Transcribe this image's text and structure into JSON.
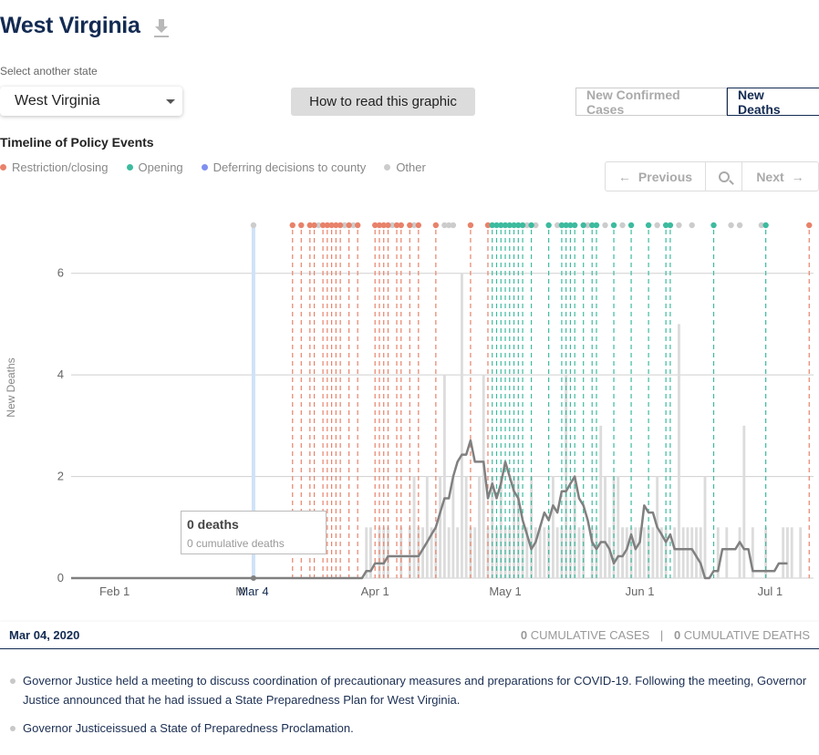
{
  "header": {
    "title": "West Virginia"
  },
  "state_select": {
    "label": "Select another state",
    "value": "West Virginia"
  },
  "how_button": {
    "label": "How to read this graphic"
  },
  "toggle": {
    "confirmed_label": "New Confirmed Cases",
    "deaths_label": "New Deaths",
    "active": "New Deaths"
  },
  "timeline": {
    "title": "Timeline of Policy Events",
    "legend": [
      {
        "label": "Restriction/closing",
        "color": "#e8826a"
      },
      {
        "label": "Opening",
        "color": "#3dbb9f"
      },
      {
        "label": "Deferring decisions to county",
        "color": "#7f8ff0"
      },
      {
        "label": "Other",
        "color": "#cccccc"
      }
    ]
  },
  "nav": {
    "previous_label": "Previous",
    "next_label": "Next"
  },
  "tooltip": {
    "deaths": "0 deaths",
    "cumulative": "0 cumulative deaths"
  },
  "info_bar": {
    "date": "Mar 04, 2020",
    "cum_cases_value": "0",
    "cum_cases_label": "CUMULATIVE CASES",
    "separator": "|",
    "cum_deaths_value": "0",
    "cum_deaths_label": "CUMULATIVE DEATHS"
  },
  "events": [
    "Governor Justice held a meeting to discuss coordination of precautionary measures and preparations for COVID-19. Following the meeting, Governor Justice announced that he had issued a State Preparedness Plan for West Virginia.",
    "Governor Justiceissued a State of Preparedness Proclamation."
  ],
  "chart_data": {
    "type": "bar",
    "ylabel": "New Deaths",
    "ylim": [
      0,
      7
    ],
    "yticks": [
      0,
      2,
      4,
      6
    ],
    "grid": true,
    "x_start": "2020-01-22",
    "x_end": "2020-07-11",
    "x_ticks": [
      {
        "label": "Feb 1",
        "date": "2020-02-01"
      },
      {
        "label": "M",
        "date": "2020-03-01"
      },
      {
        "label": "Apr 1",
        "date": "2020-04-01"
      },
      {
        "label": "May 1",
        "date": "2020-05-01"
      },
      {
        "label": "Jun 1",
        "date": "2020-06-01"
      },
      {
        "label": "Jul 1",
        "date": "2020-07-01"
      }
    ],
    "selected": {
      "label": "Mar 4",
      "date": "2020-03-04"
    },
    "bars_start": "2020-03-29",
    "bars": [
      0,
      1,
      1,
      0,
      1,
      1,
      1,
      0,
      0,
      1,
      0,
      1,
      2,
      1,
      1,
      2,
      1,
      1,
      2,
      4,
      1,
      2,
      1,
      6,
      2,
      1,
      1,
      2,
      4,
      1,
      2,
      1,
      2,
      1,
      1,
      2,
      2,
      1,
      1,
      2,
      1,
      1,
      1,
      1,
      2,
      1,
      1,
      4,
      1,
      2,
      1,
      1,
      0,
      1,
      1,
      3,
      2,
      1,
      2,
      2,
      1,
      1,
      1,
      1,
      1,
      1,
      1,
      1,
      2,
      1,
      1,
      0,
      1,
      5,
      1,
      1,
      1,
      1,
      1,
      2,
      0,
      0,
      1,
      0,
      1,
      0,
      0,
      1,
      3,
      0,
      1,
      0,
      0,
      1,
      0,
      0,
      0,
      1,
      1,
      1,
      0,
      1
    ],
    "series": [
      {
        "name": "7-day average",
        "type": "line",
        "start": "2020-03-29",
        "values": [
          0,
          0.14,
          0.14,
          0.29,
          0.29,
          0.29,
          0.43,
          0.43,
          0.43,
          0.43,
          0.43,
          0.43,
          0.43,
          0.43,
          0.57,
          0.71,
          0.86,
          1,
          1.29,
          1.57,
          1.57,
          2,
          2.29,
          2.43,
          2.43,
          2.71,
          2.29,
          2.29,
          2.29,
          1.57,
          1.86,
          1.57,
          1.86,
          2.29,
          2,
          1.71,
          1.57,
          1.14,
          0.86,
          0.57,
          0.71,
          1,
          1.29,
          1.14,
          1.43,
          1.29,
          1.71,
          1.71,
          1.86,
          2,
          1.57,
          1.43,
          1.14,
          0.71,
          0.57,
          0.71,
          0.71,
          0.57,
          0.29,
          0.43,
          0.43,
          0.57,
          0.86,
          0.57,
          0.71,
          1.43,
          1.29,
          1.29,
          1,
          0.86,
          0.71,
          0.86,
          0.57,
          0.57,
          0.57,
          0.57,
          0.57,
          0.43,
          0.29,
          0,
          0,
          0.14,
          0.14,
          0.57,
          0.57,
          0.57,
          0.57,
          0.71,
          0.57,
          0.57,
          0.14,
          0.14,
          0.14,
          0.14,
          0.14,
          0.14,
          0.29,
          0.29,
          0.29
        ],
        "before": {
          "from": "2020-01-22",
          "to": "2020-03-28",
          "value": 0
        }
      }
    ],
    "events": {
      "restriction": [
        "2020-03-13",
        "2020-03-15",
        "2020-03-17",
        "2020-03-18",
        "2020-03-20",
        "2020-03-21",
        "2020-03-22",
        "2020-03-23",
        "2020-03-24",
        "2020-03-26",
        "2020-03-28",
        "2020-04-01",
        "2020-04-02",
        "2020-04-03",
        "2020-04-04",
        "2020-04-06",
        "2020-04-07",
        "2020-04-09",
        "2020-04-11",
        "2020-04-15",
        "2020-04-23",
        "2020-04-27",
        "2020-07-10"
      ],
      "opening": [
        "2020-04-28",
        "2020-04-29",
        "2020-04-30",
        "2020-05-01",
        "2020-05-02",
        "2020-05-03",
        "2020-05-04",
        "2020-05-05",
        "2020-05-07",
        "2020-05-11",
        "2020-05-14",
        "2020-05-15",
        "2020-05-16",
        "2020-05-17",
        "2020-05-19",
        "2020-05-21",
        "2020-05-22",
        "2020-05-26",
        "2020-05-30",
        "2020-06-03",
        "2020-06-07",
        "2020-06-08",
        "2020-06-18",
        "2020-06-30"
      ],
      "other": [
        "2020-03-04",
        "2020-03-19",
        "2020-03-25",
        "2020-03-27",
        "2020-04-05",
        "2020-04-10",
        "2020-04-17",
        "2020-04-18",
        "2020-04-19",
        "2020-05-06",
        "2020-05-08",
        "2020-05-13",
        "2020-05-20",
        "2020-05-24",
        "2020-05-28",
        "2020-06-05",
        "2020-06-10",
        "2020-06-13",
        "2020-06-22",
        "2020-06-24",
        "2020-06-29"
      ]
    }
  }
}
